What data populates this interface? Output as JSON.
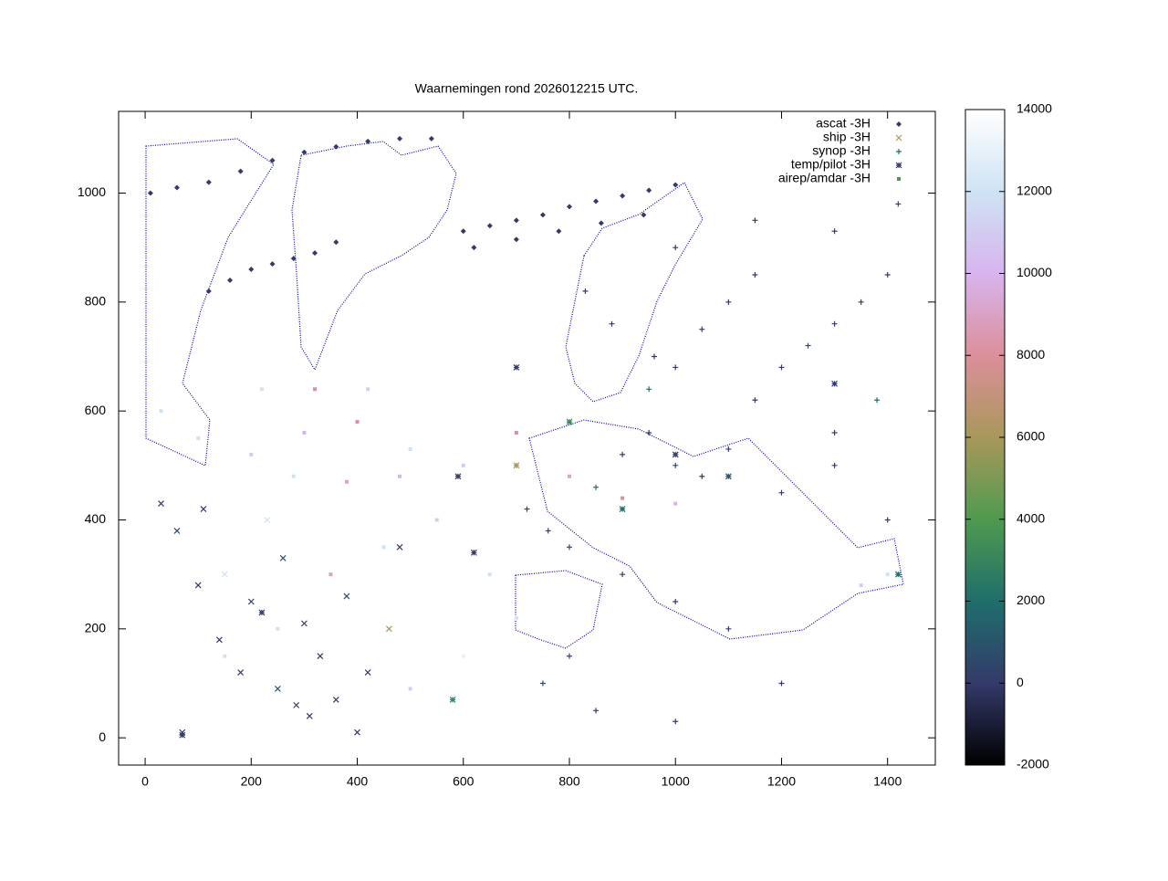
{
  "chart_data": {
    "type": "scatter",
    "title": "Waarnemingen rond 2026012215 UTC.",
    "xlim": [
      -50,
      1490
    ],
    "xticks": [
      0,
      200,
      400,
      600,
      800,
      1000,
      1200,
      1400
    ],
    "ylim": [
      -50,
      1150
    ],
    "yticks": [
      0,
      200,
      400,
      600,
      800,
      1000
    ],
    "legend": "top-right",
    "colorbar": {
      "lim": [
        -2000,
        14000
      ],
      "ticks": [
        -2000,
        0,
        2000,
        4000,
        6000,
        8000,
        10000,
        12000,
        14000
      ],
      "colors": [
        "#000000",
        "#343a6a",
        "#1f6e6c",
        "#4f9a4f",
        "#a8985a",
        "#dc8f9a",
        "#d7b4ee",
        "#cfe3f4",
        "#ffffff"
      ]
    },
    "series": [
      {
        "name": "ascat -3H",
        "marker": "diamond",
        "color": "#343a6a",
        "x": [
          10,
          60,
          120,
          180,
          240,
          300,
          360,
          420,
          480,
          540,
          120,
          160,
          200,
          240,
          280,
          320,
          360,
          600,
          650,
          700,
          750,
          800,
          850,
          900,
          950,
          1000,
          620,
          700,
          780,
          860,
          940
        ],
        "y": [
          1000,
          1010,
          1020,
          1040,
          1060,
          1075,
          1085,
          1095,
          1100,
          1100,
          820,
          840,
          860,
          870,
          880,
          890,
          910,
          930,
          940,
          950,
          960,
          975,
          985,
          995,
          1005,
          1015,
          900,
          915,
          930,
          945,
          960
        ],
        "c": [
          0,
          0,
          0,
          0,
          0,
          0,
          0,
          0,
          0,
          0,
          0,
          0,
          0,
          0,
          0,
          0,
          0,
          0,
          0,
          0,
          0,
          0,
          0,
          0,
          0,
          0,
          0,
          0,
          0,
          0,
          0
        ]
      },
      {
        "name": "ship -3H",
        "marker": "cross",
        "color": "#a8985a",
        "x": [
          30,
          60,
          100,
          150,
          200,
          260,
          300,
          330,
          380,
          420,
          460,
          70,
          140,
          250,
          310,
          360,
          400,
          480,
          230,
          110,
          180,
          285
        ],
        "y": [
          430,
          380,
          280,
          300,
          250,
          330,
          210,
          150,
          260,
          120,
          200,
          10,
          180,
          90,
          40,
          70,
          10,
          350,
          400,
          420,
          120,
          60
        ],
        "c": [
          0,
          500,
          0,
          12000,
          0,
          1000,
          0,
          0,
          500,
          0,
          6000,
          0,
          0,
          1000,
          0,
          0,
          0,
          0,
          12000,
          0,
          0,
          0
        ]
      },
      {
        "name": "synop -3H",
        "marker": "plus",
        "color": "#1f6e6c",
        "x": [
          720,
          760,
          800,
          850,
          900,
          950,
          1000,
          1050,
          1100,
          1150,
          1200,
          1250,
          1300,
          1350,
          1400,
          1000,
          1050,
          1100,
          1150,
          950,
          1200,
          1300,
          1400,
          900,
          1000,
          1100,
          800,
          750,
          850,
          1000,
          1200,
          1300,
          1380,
          960,
          880,
          830,
          1000,
          1150,
          1300,
          1420
        ],
        "y": [
          420,
          380,
          350,
          460,
          520,
          560,
          500,
          480,
          530,
          620,
          680,
          720,
          760,
          800,
          850,
          680,
          750,
          800,
          850,
          640,
          450,
          500,
          400,
          300,
          250,
          200,
          150,
          100,
          50,
          30,
          100,
          560,
          620,
          700,
          760,
          820,
          900,
          950,
          930,
          980
        ],
        "c": [
          0,
          0,
          500,
          2000,
          0,
          0,
          500,
          0,
          0,
          0,
          0,
          500,
          0,
          0,
          0,
          0,
          0,
          0,
          0,
          2000,
          0,
          0,
          0,
          0,
          0,
          0,
          0,
          500,
          0,
          0,
          0,
          0,
          2000,
          0,
          0,
          0,
          0,
          0,
          0,
          0
        ]
      },
      {
        "name": "temp/pilot -3H",
        "marker": "star",
        "color": "#343a6a",
        "x": [
          590,
          620,
          700,
          800,
          900,
          1000,
          1100,
          1300,
          1420,
          580,
          70,
          220,
          700
        ],
        "y": [
          480,
          340,
          680,
          580,
          420,
          520,
          480,
          650,
          300,
          70,
          5,
          230,
          500
        ],
        "c": [
          0,
          0,
          0,
          3000,
          2000,
          0,
          1000,
          0,
          2000,
          3000,
          0,
          0,
          6000
        ]
      },
      {
        "name": "airep/amdar -3H",
        "marker": "square",
        "color": "#4f9a4f",
        "x": [
          30,
          100,
          200,
          300,
          400,
          500,
          600,
          700,
          800,
          900,
          1000,
          450,
          350,
          250,
          150,
          550,
          650,
          700,
          600,
          500,
          420,
          320,
          220,
          1350,
          1400,
          480,
          380,
          280
        ],
        "y": [
          600,
          550,
          520,
          560,
          580,
          530,
          500,
          560,
          480,
          440,
          430,
          350,
          300,
          200,
          150,
          400,
          300,
          220,
          150,
          90,
          640,
          640,
          640,
          280,
          300,
          480,
          470,
          480
        ],
        "c": [
          12000,
          12000,
          11000,
          10000,
          8000,
          12000,
          11000,
          8000,
          9000,
          8000,
          10000,
          12000,
          9000,
          12000,
          12000,
          11000,
          12000,
          12000,
          13000,
          11000,
          11000,
          8000,
          12000,
          11000,
          12000,
          10000,
          9000,
          12000
        ]
      }
    ]
  }
}
